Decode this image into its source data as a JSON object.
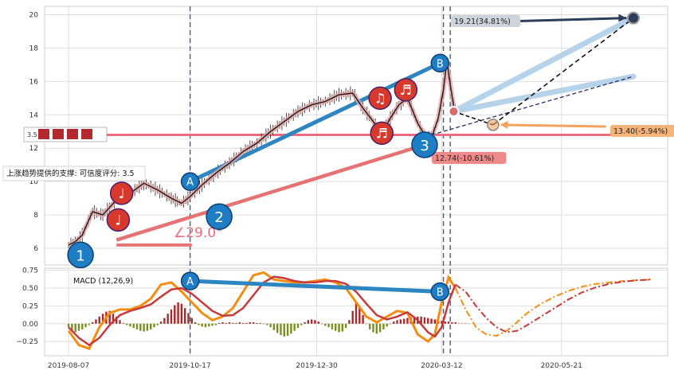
{
  "chart_data": [
    {
      "type": "line",
      "panel": "price",
      "ylim": [
        5,
        20.5
      ],
      "y_ticks": [
        6,
        8,
        10,
        12,
        14,
        16,
        18,
        20
      ],
      "x_tick_labels": [
        "2019-08-07",
        "2019-10-17",
        "2019-12-30",
        "2020-03-12",
        "2020-05-21"
      ],
      "x_tick_days": [
        0,
        71,
        145,
        218,
        288
      ],
      "series": [
        {
          "role": "price-path",
          "x": [
            0,
            4,
            8,
            14,
            20,
            28,
            36,
            44,
            52,
            60,
            66,
            71,
            78,
            86,
            94,
            102,
            110,
            118,
            126,
            134,
            142,
            150,
            158,
            166,
            172,
            178,
            183,
            188,
            193,
            198,
            204,
            208,
            212,
            216,
            219,
            221,
            223,
            225,
            227
          ],
          "y": [
            6.2,
            6.4,
            6.8,
            8.2,
            8.0,
            8.9,
            9.3,
            9.9,
            9.5,
            9.0,
            8.7,
            9.1,
            9.8,
            10.5,
            11.1,
            11.8,
            12.3,
            13.0,
            13.6,
            14.2,
            14.6,
            14.8,
            15.2,
            15.3,
            14.4,
            13.6,
            12.9,
            13.8,
            14.6,
            15.0,
            13.5,
            12.8,
            12.6,
            13.8,
            15.5,
            17.2,
            15.8,
            14.5,
            14.2
          ]
        }
      ],
      "pattern_points": [
        {
          "label": "1",
          "x": 7,
          "y": 5.6
        },
        {
          "label": "A",
          "x": 71,
          "y": 10.0
        },
        {
          "label": "2",
          "x": 88,
          "y": 7.9
        },
        {
          "label": "3",
          "x": 208,
          "y": 12.2
        },
        {
          "label": "B",
          "x": 217,
          "y": 17.1
        }
      ],
      "note_markers": [
        {
          "label": "♩",
          "x": 29,
          "y": 7.7
        },
        {
          "label": "♩",
          "x": 31,
          "y": 9.3
        },
        {
          "label": "♫",
          "x": 182,
          "y": 15.0
        },
        {
          "label": "♬",
          "x": 197,
          "y": 15.5
        },
        {
          "label": "♬",
          "x": 183,
          "y": 12.9
        }
      ],
      "support_level": 12.8,
      "annotations": {
        "angle": "∠29.0°",
        "support_text": "上涨趋势提供的支撑: 可信度评分: 3.5",
        "support_score": "3.5",
        "target_up": "19.21(34.81%)",
        "target_mid": "13.40(-5.94%)",
        "target_down": "12.74(-10.61%)"
      },
      "colors": {
        "up_channel": "#2e86c1",
        "down_channel": "#e57373",
        "support": "#ef6c80",
        "target_up": "#2c3e5a",
        "target_mid": "#f5a25d",
        "target_down": "#e57373",
        "marker_blue": "#1f7dc4",
        "marker_red": "#d73a2c"
      }
    },
    {
      "type": "bar",
      "panel": "macd",
      "title": "MACD (12,26,9)",
      "ylim": [
        -0.45,
        0.78
      ],
      "y_ticks": [
        0.75,
        0.5,
        0.25,
        0.0,
        -0.25
      ],
      "y_tick_labels": [
        "0.75",
        "0.50",
        "0.25",
        "0.00",
        "−0.25"
      ],
      "pattern_points": [
        {
          "label": "A",
          "x": 71,
          "y": 0.6
        },
        {
          "label": "B",
          "x": 217,
          "y": 0.45
        }
      ],
      "macd": {
        "x": [
          0,
          6,
          12,
          18,
          24,
          30,
          36,
          42,
          48,
          54,
          60,
          66,
          72,
          78,
          84,
          90,
          96,
          102,
          108,
          114,
          120,
          126,
          132,
          138,
          144,
          150,
          156,
          162,
          168,
          174,
          180,
          186,
          192,
          198,
          204,
          210,
          214,
          218,
          222,
          226
        ],
        "y": [
          -0.1,
          -0.3,
          -0.35,
          -0.05,
          0.15,
          0.2,
          0.2,
          0.25,
          0.35,
          0.55,
          0.58,
          0.45,
          0.3,
          0.15,
          0.05,
          0.1,
          0.22,
          0.45,
          0.68,
          0.72,
          0.62,
          0.6,
          0.58,
          0.58,
          0.6,
          0.62,
          0.58,
          0.5,
          0.3,
          0.1,
          0.02,
          0.1,
          0.18,
          0.15,
          -0.15,
          -0.25,
          -0.15,
          0.3,
          0.65,
          0.5
        ]
      },
      "signal": {
        "x": [
          0,
          6,
          12,
          18,
          24,
          30,
          36,
          42,
          48,
          54,
          60,
          66,
          72,
          78,
          84,
          90,
          96,
          102,
          108,
          114,
          120,
          126,
          132,
          138,
          144,
          150,
          156,
          162,
          168,
          174,
          180,
          186,
          192,
          198,
          204,
          210,
          214,
          218,
          222,
          226
        ],
        "y": [
          -0.05,
          -0.2,
          -0.3,
          -0.2,
          -0.02,
          0.12,
          0.18,
          0.22,
          0.27,
          0.38,
          0.48,
          0.5,
          0.42,
          0.3,
          0.18,
          0.11,
          0.12,
          0.22,
          0.4,
          0.58,
          0.66,
          0.64,
          0.6,
          0.58,
          0.58,
          0.6,
          0.6,
          0.56,
          0.45,
          0.28,
          0.12,
          0.06,
          0.1,
          0.16,
          0.05,
          -0.12,
          -0.18,
          -0.05,
          0.3,
          0.55
        ]
      },
      "forecast_macd": {
        "x": [
          226,
          232,
          238,
          244,
          250,
          256,
          262,
          268,
          276,
          284,
          292,
          300,
          308,
          316,
          324,
          332,
          340
        ],
        "y": [
          0.5,
          0.2,
          -0.05,
          -0.15,
          -0.17,
          -0.1,
          0.02,
          0.15,
          0.28,
          0.38,
          0.46,
          0.52,
          0.56,
          0.58,
          0.6,
          0.61,
          0.62
        ]
      },
      "forecast_signal": {
        "x": [
          226,
          232,
          238,
          244,
          250,
          256,
          262,
          268,
          276,
          284,
          292,
          300,
          308,
          316,
          324,
          332,
          340
        ],
        "y": [
          0.55,
          0.45,
          0.25,
          0.08,
          -0.05,
          -0.12,
          -0.1,
          -0.02,
          0.1,
          0.22,
          0.34,
          0.44,
          0.51,
          0.56,
          0.59,
          0.61,
          0.62
        ]
      },
      "histogram": {
        "x_start": 0,
        "x_step": 2,
        "values": [
          -0.05,
          -0.1,
          -0.12,
          -0.1,
          -0.08,
          -0.05,
          -0.02,
          0.02,
          0.06,
          0.1,
          0.14,
          0.17,
          0.18,
          0.14,
          0.1,
          0.05,
          0.01,
          -0.02,
          -0.04,
          -0.06,
          -0.08,
          -0.1,
          -0.11,
          -0.1,
          -0.08,
          -0.05,
          -0.02,
          0.03,
          0.08,
          0.14,
          0.2,
          0.26,
          0.3,
          0.28,
          0.22,
          0.15,
          0.08,
          0.02,
          -0.02,
          -0.04,
          -0.05,
          -0.04,
          -0.03,
          -0.02,
          0.01,
          0.02,
          0.01,
          0.02,
          0.01,
          0.01,
          0.02,
          0.01,
          0.01,
          0.02,
          0.02,
          0.01,
          0.01,
          0.0,
          -0.02,
          -0.05,
          -0.09,
          -0.13,
          -0.16,
          -0.18,
          -0.17,
          -0.14,
          -0.1,
          -0.06,
          -0.02,
          0.02,
          0.05,
          0.06,
          0.05,
          0.03,
          0.0,
          -0.03,
          -0.05,
          -0.08,
          -0.1,
          -0.12,
          -0.11,
          -0.06,
          0.05,
          0.18,
          0.3,
          0.25,
          0.12,
          0.0,
          -0.08,
          -0.12,
          -0.14,
          -0.12,
          -0.08,
          -0.04,
          0.0,
          0.03,
          0.05,
          0.06,
          0.07,
          0.08,
          0.09,
          0.1,
          0.1,
          0.1,
          0.09,
          0.08,
          0.07,
          0.06,
          0.05,
          0.04,
          0.03,
          0.03,
          0.02,
          0.02,
          0.01,
          0.01,
          0.01,
          0.0
        ],
        "forecast_from_index": 114,
        "colors": {
          "pos": "#a52a2a",
          "neg": "#7a8e1e",
          "pos_forecast": "#d88a8a",
          "neg_forecast": "#b8b8a8"
        }
      },
      "colors": {
        "macd": "#f58d13",
        "signal": "#c83a3a",
        "channel": "#2e86c1"
      }
    }
  ]
}
